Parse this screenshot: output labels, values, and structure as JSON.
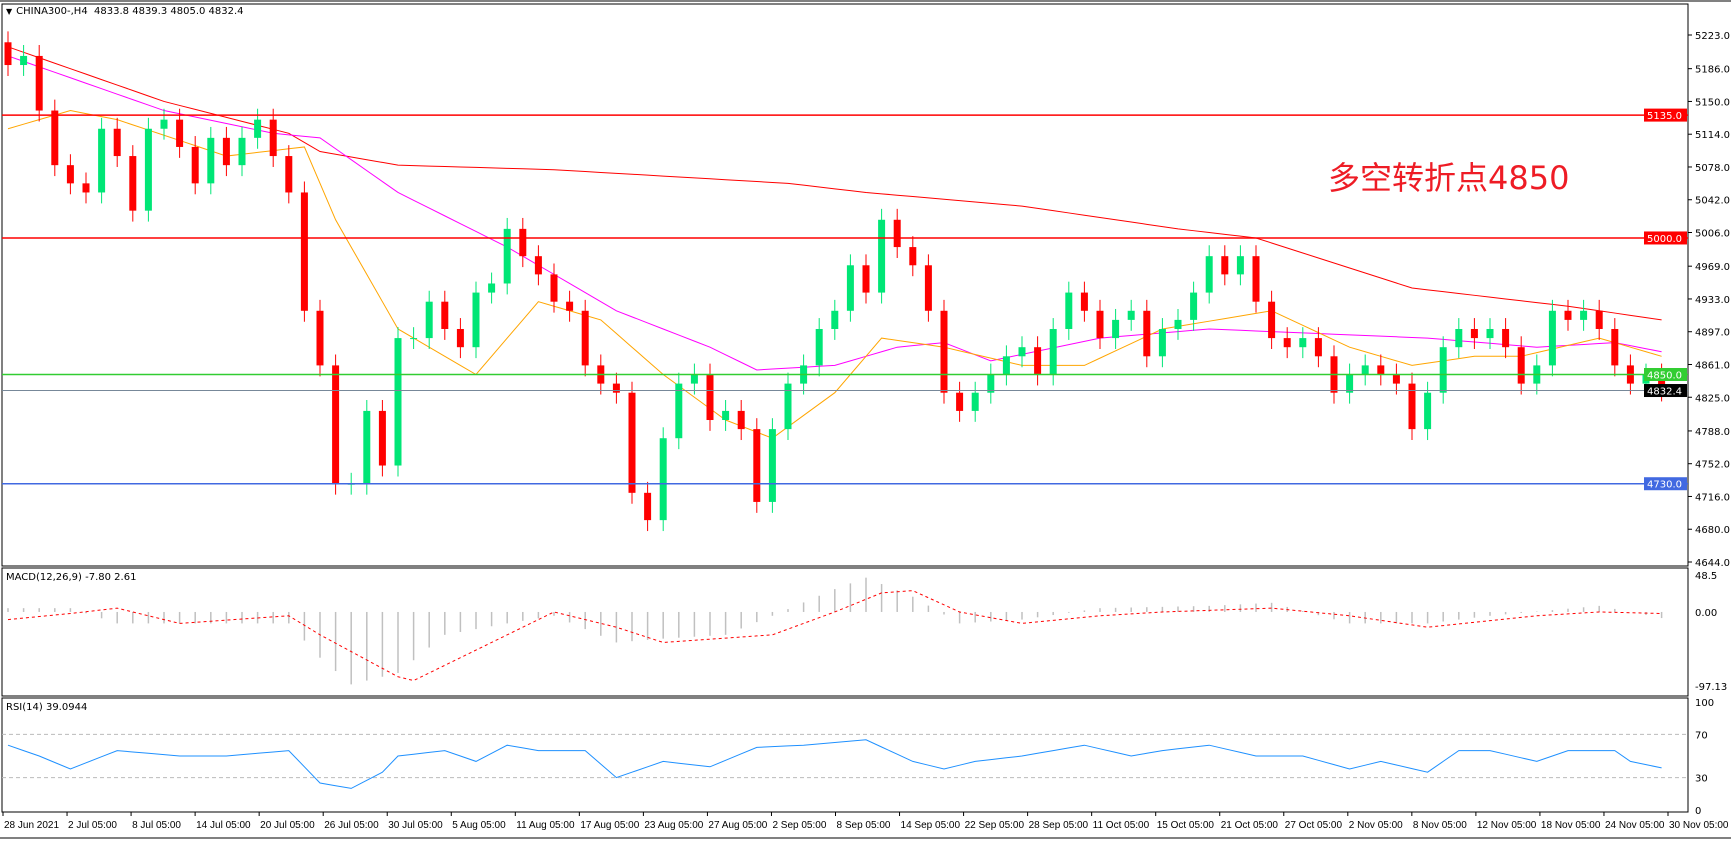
{
  "header": {
    "symbol": "CHINA300-,H4",
    "ohlc": "4833.8 4839.3 4805.0 4832.4"
  },
  "annotation": "多空转折点4850",
  "colors": {
    "bull": "#00e676",
    "bear": "#ff0000",
    "ma_slow": "#ff0000",
    "ma_mid": "#ff00ff",
    "ma_fast": "#ffa500",
    "macd_signal": "#ff0000",
    "macd_hist": "#c0c0c0",
    "rsi": "#1e90ff"
  },
  "chart_data": [
    {
      "type": "candlestick",
      "title": "CHINA300-,H4",
      "ylim": [
        4644,
        5223
      ],
      "y_ticks": [
        "5223.0",
        "5186.0",
        "5150.0",
        "5114.0",
        "5078.0",
        "5042.0",
        "5006.0",
        "4969.0",
        "4933.0",
        "4897.0",
        "4861.0",
        "4825.0",
        "4788.0",
        "4752.0",
        "4716.0",
        "4680.0",
        "4644.0"
      ],
      "x_tick_labels": [
        "28 Jun 2021",
        "2 Jul 05:00",
        "8 Jul 05:00",
        "14 Jul 05:00",
        "20 Jul 05:00",
        "26 Jul 05:00",
        "30 Jul 05:00",
        "5 Aug 05:00",
        "11 Aug 05:00",
        "17 Aug 05:00",
        "23 Aug 05:00",
        "27 Aug 05:00",
        "2 Sep 05:00",
        "8 Sep 05:00",
        "14 Sep 05:00",
        "22 Sep 05:00",
        "28 Sep 05:00",
        "11 Oct 05:00",
        "15 Oct 05:00",
        "21 Oct 05:00",
        "27 Oct 05:00",
        "2 Nov 05:00",
        "8 Nov 05:00",
        "12 Nov 05:00",
        "18 Nov 05:00",
        "24 Nov 05:00",
        "30 Nov 05:00"
      ],
      "first_open": 5215,
      "close": [
        5190,
        5200,
        5140,
        5080,
        5060,
        5050,
        5120,
        5090,
        5030,
        5120,
        5130,
        5100,
        5060,
        5110,
        5080,
        5110,
        5130,
        5090,
        5050,
        4920,
        4860,
        4730,
        4730,
        4810,
        4750,
        4890,
        4890,
        4930,
        4900,
        4880,
        4940,
        4950,
        5010,
        4980,
        4960,
        4930,
        4920,
        4860,
        4840,
        4830,
        4720,
        4690,
        4780,
        4840,
        4850,
        4800,
        4810,
        4790,
        4710,
        4790,
        4840,
        4860,
        4900,
        4920,
        4970,
        4940,
        5020,
        4990,
        4970,
        4920,
        4830,
        4810,
        4830,
        4850,
        4870,
        4880,
        4850,
        4900,
        4940,
        4920,
        4890,
        4910,
        4920,
        4870,
        4900,
        4910,
        4940,
        4980,
        4960,
        4980,
        4930,
        4890,
        4880,
        4890,
        4870,
        4830,
        4850,
        4860,
        4850,
        4840,
        4790,
        4830,
        4880,
        4900,
        4890,
        4900,
        4880,
        4840,
        4860,
        4920,
        4910,
        4920,
        4900,
        4860,
        4840,
        4850,
        4832.4
      ],
      "moving_averages": [
        {
          "color_key": "ma_slow",
          "points": [
            [
              0,
              5210
            ],
            [
              10,
              5150
            ],
            [
              18,
              5115
            ],
            [
              20,
              5095
            ],
            [
              25,
              5080
            ],
            [
              35,
              5075
            ],
            [
              50,
              5060
            ],
            [
              55,
              5050
            ],
            [
              65,
              5035
            ],
            [
              75,
              5010
            ],
            [
              80,
              5000
            ],
            [
              90,
              4945
            ],
            [
              100,
              4925
            ],
            [
              106,
              4910
            ]
          ]
        },
        {
          "color_key": "ma_mid",
          "points": [
            [
              0,
              5200
            ],
            [
              10,
              5140
            ],
            [
              17,
              5115
            ],
            [
              20,
              5110
            ],
            [
              25,
              5050
            ],
            [
              32,
              4990
            ],
            [
              39,
              4920
            ],
            [
              45,
              4880
            ],
            [
              48,
              4855
            ],
            [
              53,
              4860
            ],
            [
              57,
              4880
            ],
            [
              60,
              4885
            ],
            [
              63,
              4865
            ],
            [
              70,
              4890
            ],
            [
              77,
              4900
            ],
            [
              84,
              4895
            ],
            [
              91,
              4890
            ],
            [
              98,
              4880
            ],
            [
              103,
              4885
            ],
            [
              106,
              4875
            ]
          ]
        },
        {
          "color_key": "ma_fast",
          "points": [
            [
              0,
              5120
            ],
            [
              4,
              5140
            ],
            [
              7,
              5130
            ],
            [
              14,
              5090
            ],
            [
              19,
              5100
            ],
            [
              21,
              5020
            ],
            [
              25,
              4900
            ],
            [
              30,
              4850
            ],
            [
              34,
              4930
            ],
            [
              38,
              4910
            ],
            [
              42,
              4850
            ],
            [
              46,
              4800
            ],
            [
              49,
              4780
            ],
            [
              53,
              4830
            ],
            [
              56,
              4890
            ],
            [
              60,
              4880
            ],
            [
              65,
              4860
            ],
            [
              69,
              4860
            ],
            [
              74,
              4900
            ],
            [
              81,
              4920
            ],
            [
              86,
              4880
            ],
            [
              90,
              4860
            ],
            [
              94,
              4870
            ],
            [
              97,
              4870
            ],
            [
              102,
              4890
            ],
            [
              106,
              4870
            ]
          ]
        }
      ],
      "levels": [
        {
          "value": 5135.0,
          "label": "5135.0",
          "color": "#ff0000"
        },
        {
          "value": 5000.0,
          "label": "5000.0",
          "color": "#ff0000"
        },
        {
          "value": 4850.0,
          "label": "4850.0",
          "color": "#32cd32"
        },
        {
          "value": 4730.0,
          "label": "4730.0",
          "color": "#4169e1"
        },
        {
          "value": 4832.4,
          "label": "4832.4",
          "color": "#000000",
          "line_color": "#778899"
        }
      ]
    },
    {
      "type": "bar+line",
      "title": "MACD(12,26,9) -7.80 2.61",
      "ylim": [
        -97.13,
        48.5
      ],
      "y_ticks": [
        "48.5",
        "0.00",
        "-97.13"
      ],
      "histogram": [
        [
          0,
          5
        ],
        [
          4,
          5
        ],
        [
          7,
          -15
        ],
        [
          11,
          -15
        ],
        [
          18,
          -15
        ],
        [
          20,
          -60
        ],
        [
          22,
          -95
        ],
        [
          25,
          -80
        ],
        [
          28,
          -30
        ],
        [
          32,
          -15
        ],
        [
          35,
          -5
        ],
        [
          39,
          -40
        ],
        [
          42,
          -35
        ],
        [
          46,
          -30
        ],
        [
          49,
          -5
        ],
        [
          53,
          30
        ],
        [
          55,
          45
        ],
        [
          58,
          20
        ],
        [
          61,
          -15
        ],
        [
          65,
          -10
        ],
        [
          70,
          5
        ],
        [
          77,
          8
        ],
        [
          81,
          12
        ],
        [
          86,
          -15
        ],
        [
          91,
          -15
        ],
        [
          95,
          -5
        ],
        [
          102,
          8
        ],
        [
          106,
          -8
        ]
      ],
      "signal": [
        [
          0,
          -10
        ],
        [
          4,
          -2
        ],
        [
          7,
          5
        ],
        [
          11,
          -15
        ],
        [
          18,
          -5
        ],
        [
          20,
          -30
        ],
        [
          25,
          -85
        ],
        [
          26,
          -90
        ],
        [
          32,
          -30
        ],
        [
          35,
          0
        ],
        [
          39,
          -20
        ],
        [
          42,
          -40
        ],
        [
          49,
          -30
        ],
        [
          53,
          0
        ],
        [
          56,
          25
        ],
        [
          58,
          28
        ],
        [
          61,
          0
        ],
        [
          65,
          -15
        ],
        [
          70,
          -5
        ],
        [
          74,
          0
        ],
        [
          81,
          5
        ],
        [
          86,
          -5
        ],
        [
          91,
          -20
        ],
        [
          98,
          -5
        ],
        [
          102,
          0
        ],
        [
          106,
          -2
        ]
      ]
    },
    {
      "type": "line",
      "title": "RSI(14) 39.0944",
      "ylim": [
        0,
        100
      ],
      "y_ticks": [
        "100",
        "70",
        "30",
        "0"
      ],
      "levels": [
        70,
        30
      ],
      "values": [
        [
          0,
          60
        ],
        [
          2,
          50
        ],
        [
          4,
          38
        ],
        [
          7,
          55
        ],
        [
          11,
          50
        ],
        [
          14,
          50
        ],
        [
          18,
          55
        ],
        [
          20,
          25
        ],
        [
          22,
          20
        ],
        [
          24,
          35
        ],
        [
          25,
          50
        ],
        [
          28,
          55
        ],
        [
          30,
          45
        ],
        [
          32,
          60
        ],
        [
          34,
          55
        ],
        [
          37,
          55
        ],
        [
          39,
          30
        ],
        [
          42,
          45
        ],
        [
          45,
          40
        ],
        [
          48,
          58
        ],
        [
          51,
          60
        ],
        [
          55,
          65
        ],
        [
          58,
          45
        ],
        [
          60,
          38
        ],
        [
          62,
          45
        ],
        [
          65,
          50
        ],
        [
          67,
          55
        ],
        [
          69,
          60
        ],
        [
          72,
          50
        ],
        [
          74,
          55
        ],
        [
          77,
          60
        ],
        [
          80,
          50
        ],
        [
          83,
          50
        ],
        [
          86,
          38
        ],
        [
          88,
          45
        ],
        [
          91,
          35
        ],
        [
          93,
          55
        ],
        [
          95,
          55
        ],
        [
          98,
          45
        ],
        [
          100,
          55
        ],
        [
          103,
          55
        ],
        [
          104,
          45
        ],
        [
          106,
          39
        ]
      ]
    }
  ]
}
